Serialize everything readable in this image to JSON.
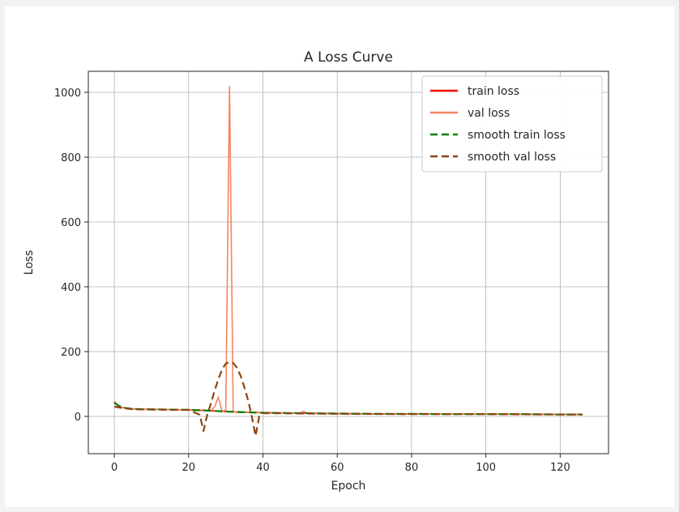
{
  "chart_data": {
    "type": "line",
    "title": "A Loss Curve",
    "xlabel": "Epoch",
    "ylabel": "Loss",
    "xlim": [
      -7,
      133
    ],
    "ylim": [
      -115,
      1065
    ],
    "grid": true,
    "legend_position": "top-right",
    "xticks": [
      0,
      20,
      40,
      60,
      80,
      100,
      120
    ],
    "yticks": [
      0,
      200,
      400,
      600,
      800,
      1000
    ],
    "series": [
      {
        "name": "train loss",
        "color": "#ff0000",
        "style": "solid",
        "x": [
          0,
          1,
          2,
          3,
          4,
          6,
          8,
          10,
          15,
          20,
          25,
          30,
          35,
          40,
          50,
          60,
          70,
          80,
          90,
          100,
          110,
          120,
          126
        ],
        "y": [
          46,
          33,
          28,
          26,
          24,
          23,
          22,
          22,
          21,
          20,
          18,
          15,
          13,
          12,
          10,
          9,
          8,
          8,
          7,
          7,
          7,
          6,
          6
        ]
      },
      {
        "name": "val loss",
        "color": "#f4845f",
        "style": "solid",
        "x": [
          0,
          1,
          2,
          4,
          6,
          10,
          20,
          24,
          26,
          27,
          28,
          29,
          30,
          31,
          32,
          33,
          35,
          40,
          50,
          51,
          52,
          60,
          80,
          100,
          120,
          126
        ],
        "y": [
          45,
          32,
          27,
          24,
          22,
          21,
          21,
          20,
          18,
          30,
          60,
          15,
          20,
          1018,
          15,
          12,
          12,
          11,
          10,
          16,
          9,
          8,
          7,
          7,
          6,
          6
        ]
      },
      {
        "name": "smooth train loss",
        "color": "#008000",
        "style": "dashed",
        "x": [
          0,
          1,
          2,
          3,
          5,
          8,
          10,
          15,
          20,
          25,
          30,
          35,
          40,
          50,
          60,
          70,
          80,
          90,
          100,
          110,
          120,
          126
        ],
        "y": [
          42,
          34,
          29,
          26,
          23,
          22,
          22,
          21,
          20,
          18,
          15,
          13,
          11,
          10,
          9,
          8,
          8,
          7,
          7,
          7,
          6,
          6
        ]
      },
      {
        "name": "smooth val loss",
        "color": "#8b4513",
        "style": "dashed",
        "x": [
          0,
          2,
          5,
          10,
          20,
          23,
          24,
          25,
          26,
          27,
          28,
          29,
          30,
          31,
          32,
          33,
          34,
          35,
          36,
          37,
          38,
          39,
          40,
          50,
          60,
          80,
          100,
          120,
          126
        ],
        "y": [
          30,
          26,
          22,
          21,
          20,
          5,
          -45,
          5,
          40,
          80,
          115,
          145,
          163,
          168,
          165,
          150,
          125,
          90,
          50,
          0,
          -60,
          0,
          10,
          9,
          8,
          7,
          7,
          6,
          6
        ]
      }
    ]
  }
}
